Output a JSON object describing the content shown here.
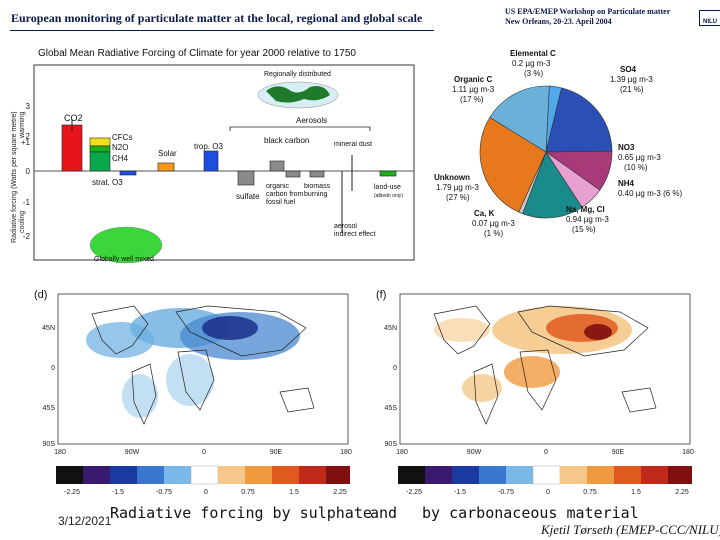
{
  "header": {
    "title": "European monitoring of particulate matter at the local, regional and global scale",
    "workshop_line1": "US EPA/EMEP Workshop on Particulate matter",
    "workshop_line2": "New Orleans, 20-23. April 2004",
    "logo": "NILU"
  },
  "forcing_chart": {
    "title": "Global Mean Radiative Forcing of Climate for year 2000 relative to 1750",
    "ylabel": "Radiative forcing (Watts per square metre)",
    "y_side_top": "warming",
    "y_side_bottom": "cooling",
    "ticks": [
      "3",
      "2",
      "+1",
      "0",
      "-1",
      "-2"
    ],
    "labels": {
      "co2": "CO2",
      "cfcs": "CFCs",
      "n2o": "N2O",
      "ch4": "CH4",
      "strat_o3": "strat. O3",
      "trop_o3": "trop. O3",
      "solar": "Solar",
      "aerosols": "Aerosols",
      "black_carbon": "black carbon",
      "sulfate": "sulfate",
      "organic_carbon": "organic carbon from fossil fuel",
      "biomass": "biomass burning",
      "mineral_dust": "mineral dust",
      "land_use": "land-use",
      "land_use_note": "(albedo only)",
      "aerosol_indirect": "aerosol indirect effect",
      "regional": "Regionally distributed",
      "global": "Globally well mixed"
    },
    "colors": {
      "co2": "#e8141c",
      "cfcs": "#f2e01a",
      "n2o": "#1ab01a",
      "ch4": "#0aa84b",
      "ozone": "#1a4fe0",
      "solar": "#f39a1e",
      "aerosol": "#8a8a8a",
      "land": "#1ab01a"
    }
  },
  "pie_chart": {
    "labels": {
      "elemental_c": "Elemental C",
      "elemental_c_val": "0.2 µg m-3",
      "elemental_c_pct": "(3 %)",
      "so4": "SO4",
      "so4_val": "1.39 µg m-3",
      "so4_pct": "(21 %)",
      "organic_c": "Organic C",
      "organic_c_val": "1.11 µg m-3",
      "organic_c_pct": "(17 %)",
      "no3": "NO3",
      "no3_val": "0.65 µg m-3",
      "no3_pct": "(10 %)",
      "nh4": "NH4",
      "nh4_val": "0.40 µg m-3 (6 %)",
      "unknown": "Unknown",
      "unknown_val": "1.79 µg m-3",
      "unknown_pct": "(27 %)",
      "ca_k": "Ca, K",
      "ca_k_val": "0.07 µg m-3",
      "ca_k_pct": "(1 %)",
      "na_mg_cl": "Na, Mg, Cl",
      "na_mg_cl_val": "0.94 µg m-3",
      "na_mg_cl_pct": "(15 %)"
    },
    "colors": {
      "elemental_c": "#4fa8e8",
      "so4": "#2a4fb5",
      "no3": "#a83a7a",
      "nh4": "#e8a0d0",
      "na_mg_cl": "#1a8a8a",
      "ca_k": "#c9c9c9",
      "unknown": "#e8781e",
      "organic_c": "#6ab0d8"
    }
  },
  "maps": {
    "left_label": "(d)",
    "right_label": "(f)",
    "lat_ticks": [
      "45N",
      "0",
      "45S",
      "90S"
    ],
    "lon_ticks": [
      "180",
      "90W",
      "0",
      "90E",
      "180"
    ],
    "colorbar_ticks": [
      "-2.25",
      "-1.5",
      "-0.75",
      "0",
      "0.75",
      "1.5",
      "2.25"
    ]
  },
  "captions": {
    "sulphate": "Radiative forcing by sulphate",
    "and": "and",
    "carbon": "by carbonaceous material"
  },
  "footer": {
    "date": "3/12/2021",
    "author": "Kjetil Tørseth (EMEP-CCC/NILU)"
  }
}
